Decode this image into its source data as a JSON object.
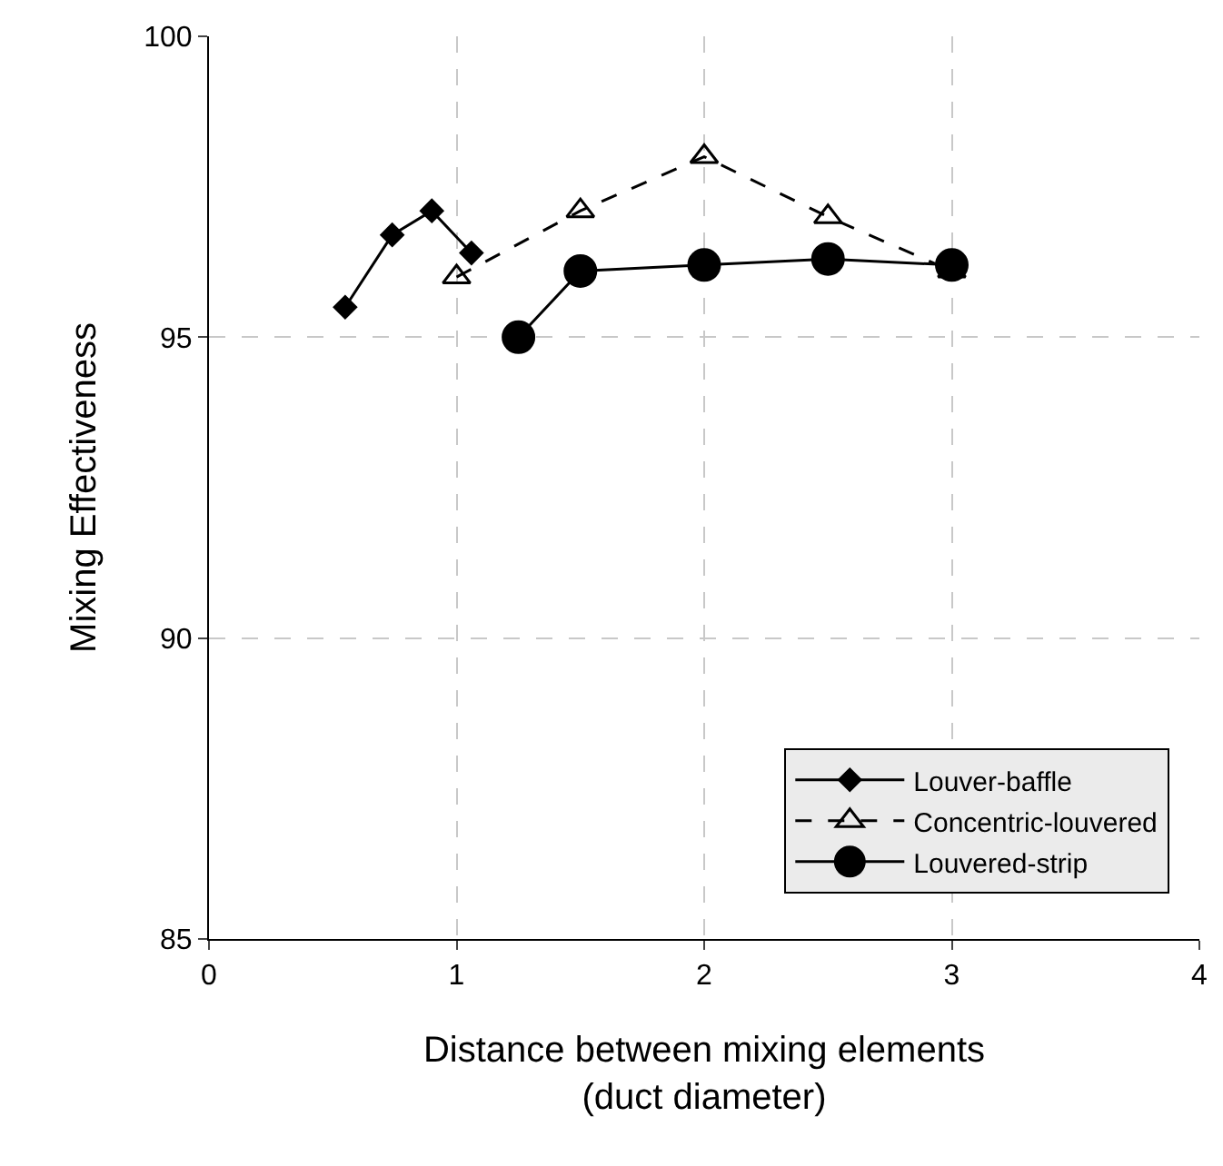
{
  "chart_data": {
    "type": "line",
    "xlabel": "Distance between mixing elements\n(duct diameter)",
    "ylabel": "Mixing Effectiveness",
    "xlim": [
      0,
      4
    ],
    "xticks": [
      0,
      1,
      2,
      3,
      4
    ],
    "ylim": [
      85,
      100
    ],
    "yticks": [
      85,
      90,
      95,
      100
    ],
    "grid": true,
    "legend": "bottom right",
    "series": [
      {
        "name": "Louver-baffle",
        "color": "#000000",
        "marker": "diamond",
        "line_style": "solid",
        "x": [
          0.55,
          0.74,
          0.9,
          1.06
        ],
        "values": [
          95.5,
          96.7,
          97.1,
          96.4
        ]
      },
      {
        "name": "Concentric-louvered",
        "color": "#000000",
        "marker": "triangle",
        "line_style": "dashed",
        "x": [
          1.0,
          1.5,
          2.0,
          2.5,
          3.0
        ],
        "values": [
          96.0,
          97.1,
          98.0,
          97.0,
          96.1
        ]
      },
      {
        "name": "Louvered-strip",
        "color": "#000000",
        "marker": "circle",
        "line_style": "solid",
        "x": [
          1.25,
          1.5,
          2.0,
          2.5,
          3.0
        ],
        "values": [
          95.0,
          96.1,
          96.2,
          96.3,
          96.2
        ]
      }
    ]
  }
}
